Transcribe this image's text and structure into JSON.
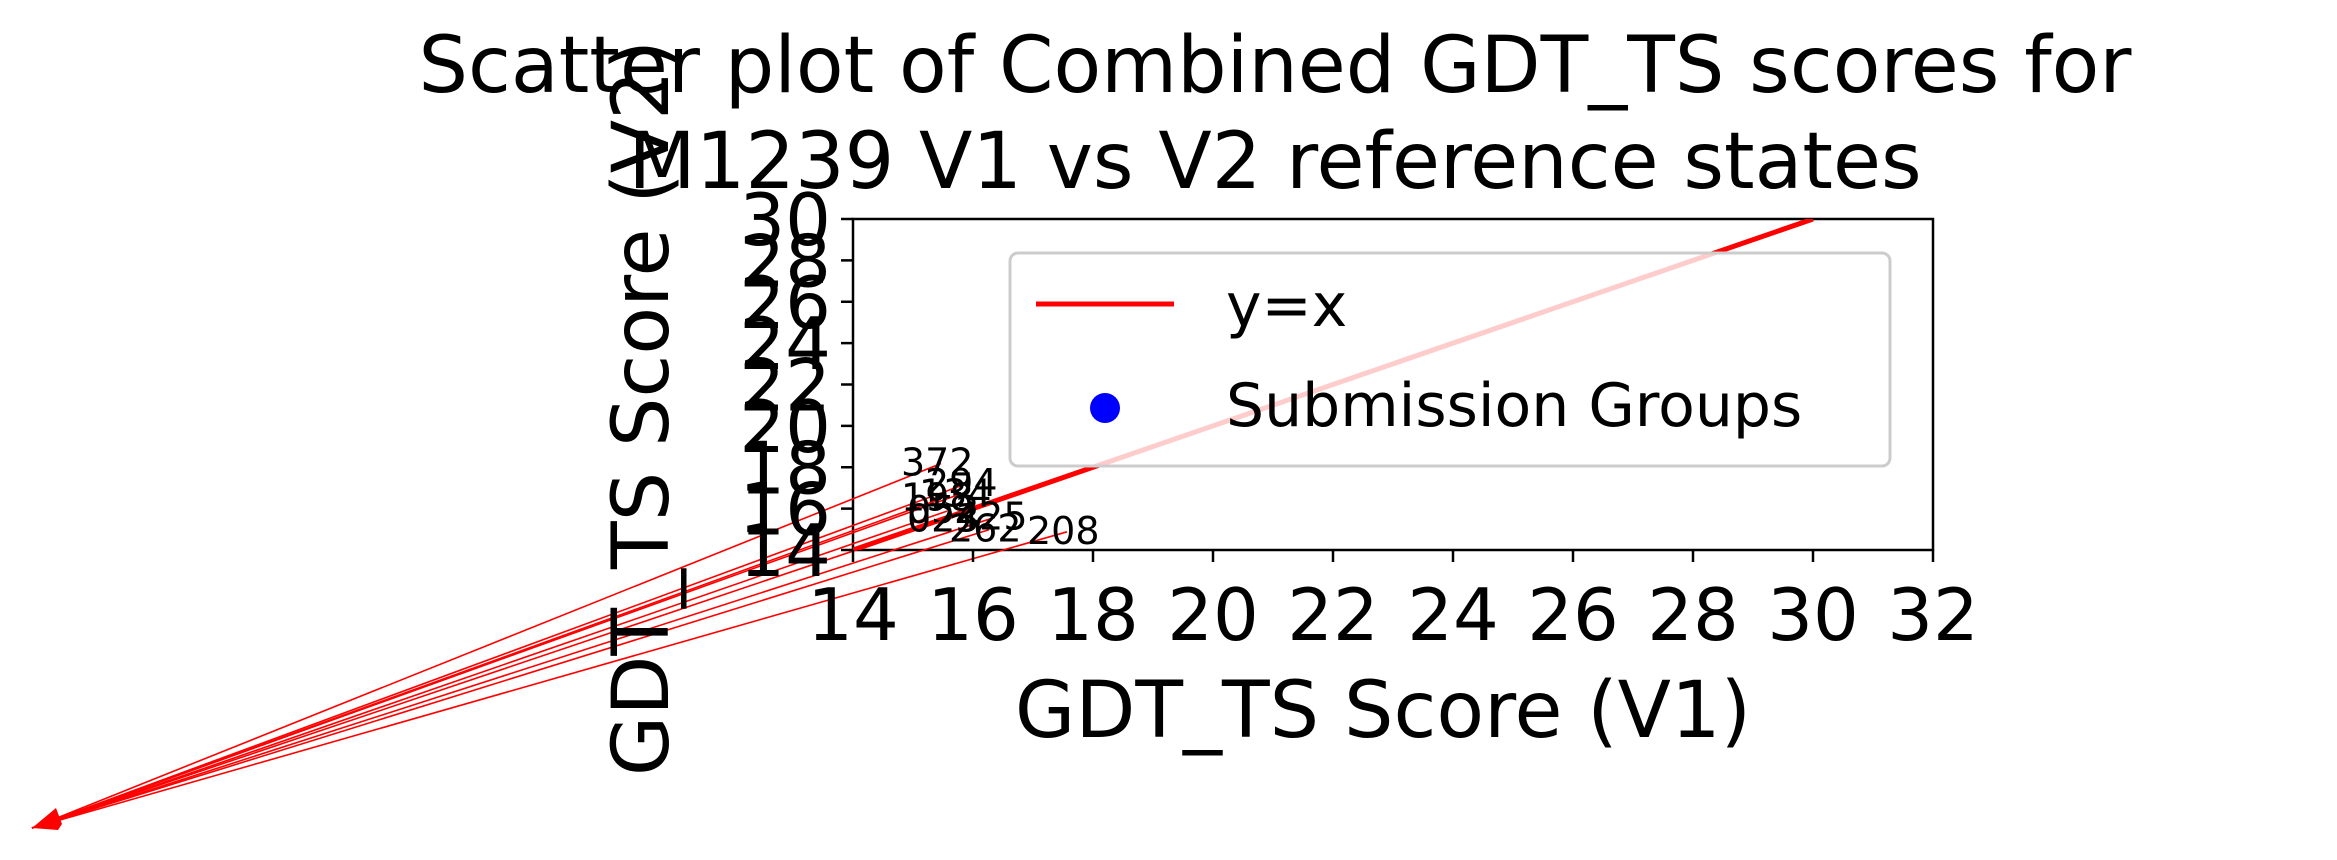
{
  "chart_data": {
    "type": "scatter",
    "title_lines": [
      "Scatter plot of Combined GDT_TS scores for",
      "M1239 V1 vs V2 reference states"
    ],
    "xlabel": "GDT_TS Score (V1)",
    "ylabel": "GDT_TS Score (V2)",
    "xlim": [
      14,
      32
    ],
    "ylim": [
      14,
      30
    ],
    "xticks": [
      14,
      16,
      18,
      20,
      22,
      24,
      26,
      28,
      30,
      32
    ],
    "yticks": [
      14,
      16,
      18,
      20,
      22,
      24,
      26,
      28,
      30
    ],
    "grid": false,
    "legend_position": "upper-right",
    "reference_line": {
      "name": "y=x",
      "color": "#ff0000"
    },
    "series": [
      {
        "name": "Submission Groups",
        "color": "#0000ff",
        "marker": "circle",
        "points": []
      }
    ],
    "annotations": [
      {
        "text": "372",
        "x": 14.8,
        "y": 17.6
      },
      {
        "text": "294",
        "x": 15.2,
        "y": 16.6
      },
      {
        "text": "134",
        "x": 15.1,
        "y": 16.1
      },
      {
        "text": "198",
        "x": 14.8,
        "y": 15.9
      },
      {
        "text": "052",
        "x": 14.9,
        "y": 15.3
      },
      {
        "text": "425",
        "x": 15.7,
        "y": 15.0
      },
      {
        "text": "023",
        "x": 14.9,
        "y": 14.9
      },
      {
        "text": "262",
        "x": 15.6,
        "y": 14.4
      },
      {
        "text": "208",
        "x": 16.9,
        "y": 14.3
      }
    ],
    "arrow_color": "#ff0000"
  }
}
